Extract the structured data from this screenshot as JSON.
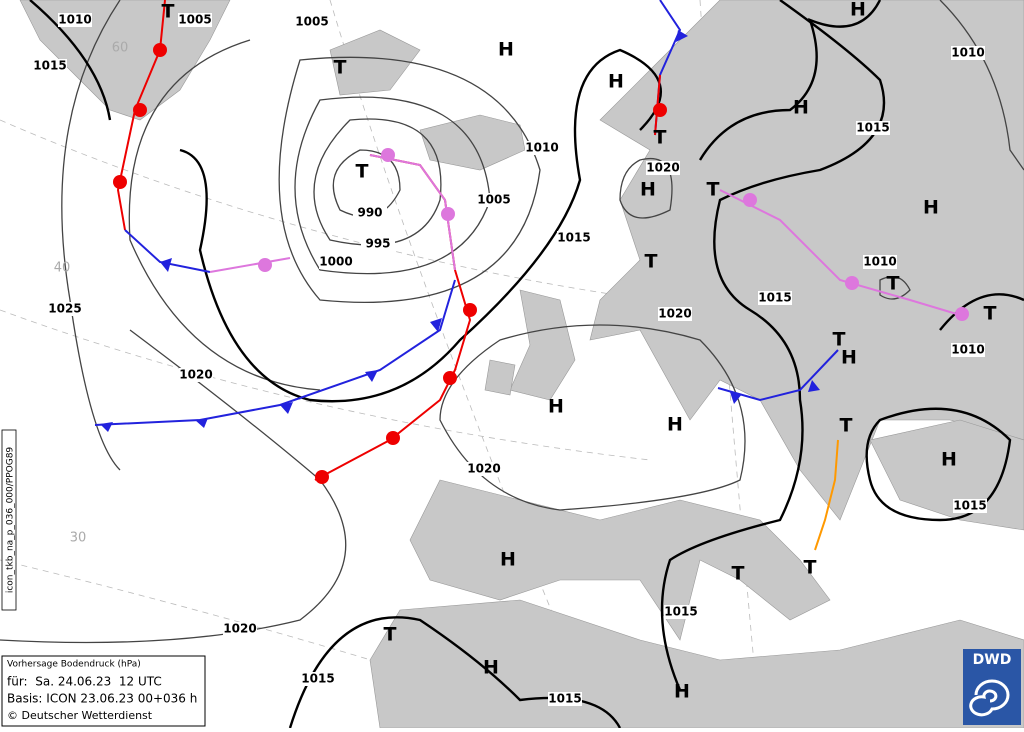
{
  "map": {
    "pressure_labels": [
      1010,
      1005,
      1005,
      1015,
      1010,
      1005,
      990,
      995,
      1000,
      1015,
      1020,
      1010,
      1015,
      1010,
      1015,
      1020,
      1010,
      1025,
      1020,
      1020,
      1015,
      1015,
      1020,
      1015,
      1015
    ],
    "centers": [
      "T",
      "H",
      "H",
      "T",
      "H",
      "H",
      "T",
      "T",
      "H",
      "T",
      "H",
      "T",
      "T",
      "T",
      "T",
      "H",
      "H",
      "H",
      "T",
      "H",
      "H",
      "T",
      "T",
      "T",
      "H",
      "H"
    ],
    "latitude_labels": [
      "60",
      "40",
      "30"
    ]
  },
  "legend": {
    "title": "Vorhersage Bodendruck (hPa)",
    "valid": "für:  Sa. 24.06.23  12 UTC",
    "basis": "Basis: ICON  23.06.23 00+036 h",
    "credit": "© Deutscher Wetterdienst"
  },
  "product_id": "icon_tkb_na_p_036_000/PPOG89",
  "logo": "DWD"
}
